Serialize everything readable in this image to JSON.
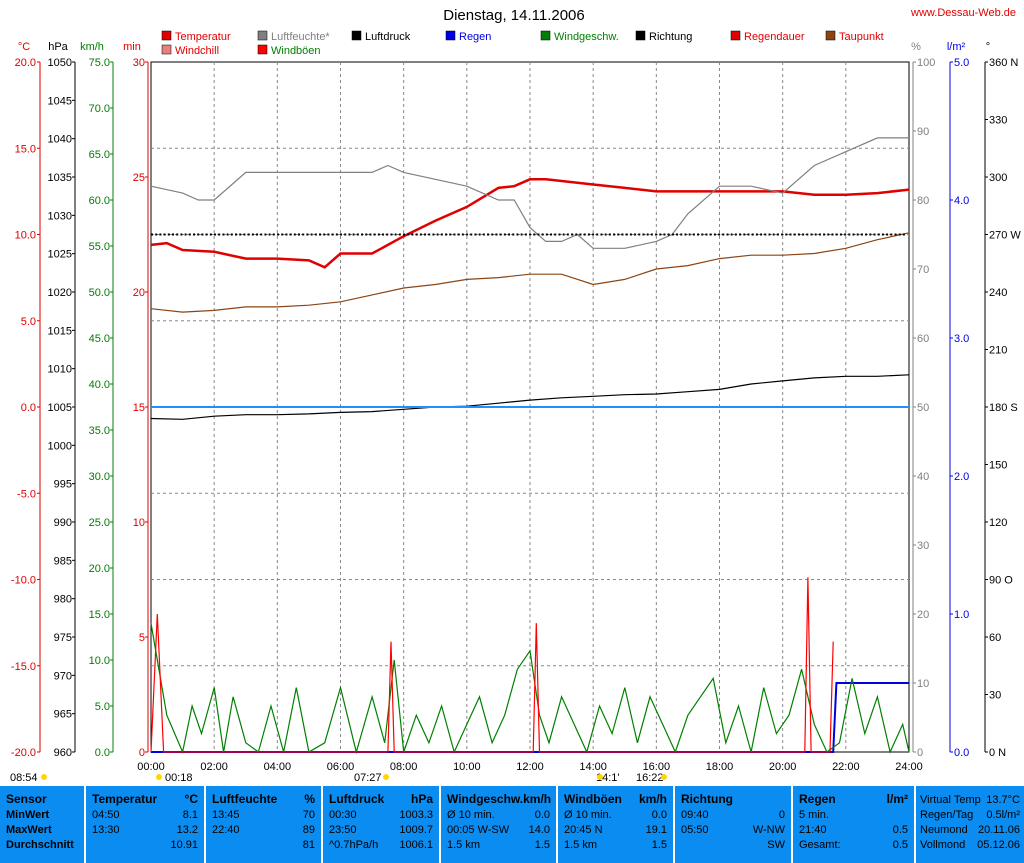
{
  "header": {
    "title": "Dienstag, 14.11.2006",
    "website": "www.Dessau-Web.de"
  },
  "legend": [
    {
      "label": "Temperatur",
      "color": "#e00000",
      "text_color": "#e00000"
    },
    {
      "label": "Windchill",
      "color": "#e88080",
      "text_color": "#e00000"
    },
    {
      "label": "Luftfeuchte*",
      "color": "#808080",
      "text_color": "#808080"
    },
    {
      "label": "Windböen",
      "color": "#ff0000",
      "text_color": "#008000"
    },
    {
      "label": "Luftdruck",
      "color": "#000000",
      "text_color": "#000000"
    },
    {
      "label": "Regen",
      "color": "#0000e0",
      "text_color": "#0000e0"
    },
    {
      "label": "Windgeschw.",
      "color": "#008000",
      "text_color": "#008000"
    },
    {
      "label": "Richtung",
      "color": "#000000",
      "text_color": "#000000"
    },
    {
      "label": "Regendauer",
      "color": "#e00000",
      "text_color": "#e00000"
    },
    {
      "label": "Taupunkt",
      "color": "#8b4513",
      "text_color": "#e00000"
    }
  ],
  "axes": {
    "temp": {
      "unit": "°C",
      "color": "#e00000",
      "ticks": [
        "20.0",
        "15.0",
        "10.0",
        "5.0",
        "0.0",
        "-5.0",
        "-10.0",
        "-15.0",
        "-20.0"
      ]
    },
    "pressure": {
      "unit": "hPa",
      "color": "#000000",
      "ticks": [
        "1050",
        "1045",
        "1040",
        "1035",
        "1030",
        "1025",
        "1020",
        "1015",
        "1010",
        "1005",
        "1000",
        "995",
        "990",
        "985",
        "980",
        "975",
        "970",
        "965",
        "960"
      ]
    },
    "wind": {
      "unit": "km/h",
      "color": "#008000",
      "ticks": [
        "75.0",
        "70.0",
        "65.0",
        "60.0",
        "55.0",
        "50.0",
        "45.0",
        "40.0",
        "35.0",
        "30.0",
        "25.0",
        "20.0",
        "15.0",
        "10.0",
        "5.0",
        "0.0"
      ]
    },
    "minutes": {
      "unit": "min",
      "color": "#e00000",
      "ticks": [
        "30",
        "25",
        "20",
        "15",
        "10",
        "5",
        "0"
      ]
    },
    "humidity": {
      "unit": "%",
      "color": "#808080",
      "ticks": [
        "100",
        "90",
        "80",
        "70",
        "60",
        "50",
        "40",
        "30",
        "20",
        "10",
        "0"
      ]
    },
    "rain": {
      "unit": "l/m²",
      "color": "#0000e0",
      "ticks": [
        "5.0",
        "4.0",
        "3.0",
        "2.0",
        "1.0",
        "0.0"
      ]
    },
    "direction": {
      "unit": "°",
      "color": "#000000",
      "ticks": [
        "360 N",
        "330",
        "300",
        "270 W",
        "240",
        "210",
        "180 S",
        "150",
        "120",
        "90 O",
        "60",
        "30",
        "0 N"
      ]
    },
    "time": {
      "ticks": [
        "00:00",
        "02:00",
        "04:00",
        "06:00",
        "08:00",
        "10:00",
        "12:00",
        "14:00",
        "16:00",
        "18:00",
        "20:00",
        "22:00",
        "24:00"
      ]
    }
  },
  "sun_events": [
    "08:54",
    "00:18",
    "07:27",
    "14:1'",
    "16:22"
  ],
  "chart_data": {
    "type": "line",
    "x_unit": "hours",
    "xlim": [
      0,
      24
    ],
    "series": [
      {
        "name": "Temperatur",
        "axis": "temp",
        "color": "#e00000",
        "x": [
          0,
          0.5,
          1,
          2,
          3,
          4,
          5,
          5.5,
          6,
          7,
          7.5,
          8,
          9,
          10,
          11,
          11.5,
          12,
          12.5,
          13,
          14,
          15,
          16,
          17,
          18,
          19,
          20,
          21,
          22,
          23,
          24
        ],
        "y": [
          9.4,
          9.5,
          9.1,
          9.0,
          8.6,
          8.6,
          8.5,
          8.1,
          8.9,
          8.9,
          9.4,
          9.9,
          10.8,
          11.6,
          12.7,
          12.8,
          13.2,
          13.2,
          13.1,
          12.9,
          12.7,
          12.5,
          12.5,
          12.5,
          12.5,
          12.5,
          12.3,
          12.3,
          12.4,
          12.6
        ]
      },
      {
        "name": "Taupunkt",
        "axis": "temp",
        "color": "#8b4513",
        "x": [
          0,
          1,
          2,
          3,
          4,
          5,
          6,
          7,
          8,
          9,
          10,
          11,
          12,
          13,
          14,
          15,
          16,
          17,
          18,
          19,
          20,
          21,
          22,
          23,
          24
        ],
        "y": [
          5.7,
          5.5,
          5.6,
          5.8,
          5.8,
          5.9,
          6.1,
          6.5,
          6.9,
          7.1,
          7.4,
          7.5,
          7.7,
          7.7,
          7.1,
          7.4,
          8.0,
          8.2,
          8.6,
          8.8,
          8.8,
          8.9,
          9.2,
          9.7,
          10.1
        ]
      },
      {
        "name": "Luftfeuchte*",
        "axis": "humidity",
        "color": "#808080",
        "x": [
          0,
          1,
          1.5,
          2,
          3,
          4,
          5,
          6,
          7,
          7.5,
          8,
          9,
          10,
          11,
          11.5,
          12,
          12.5,
          13,
          13.5,
          14,
          15,
          16,
          16.5,
          17,
          18,
          19,
          20,
          21,
          22,
          23,
          24
        ],
        "y": [
          82,
          81,
          80,
          80,
          84,
          84,
          84,
          84,
          84,
          85,
          84,
          83,
          82,
          80,
          80,
          76,
          74,
          74,
          75,
          73,
          73,
          74,
          75,
          78,
          82,
          82,
          81,
          85,
          87,
          89,
          89
        ]
      },
      {
        "name": "Luftdruck",
        "axis": "pressure",
        "color": "#000000",
        "x": [
          0,
          1,
          2,
          3,
          4,
          5,
          6,
          7,
          8,
          9,
          10,
          11,
          12,
          13,
          14,
          15,
          16,
          17,
          18,
          19,
          20,
          21,
          22,
          23,
          24
        ],
        "y": [
          1003.5,
          1003.4,
          1003.8,
          1004.0,
          1004.0,
          1004.1,
          1004.3,
          1004.4,
          1004.7,
          1005.0,
          1005.1,
          1005.5,
          1005.9,
          1006.2,
          1006.4,
          1006.6,
          1006.7,
          1007.0,
          1007.3,
          1008.0,
          1008.4,
          1008.8,
          1009.0,
          1009.0,
          1009.2
        ]
      },
      {
        "name": "Regen",
        "axis": "rain",
        "color": "#0000e0",
        "x": [
          0,
          21.6,
          21.7,
          24
        ],
        "y": [
          0,
          0,
          0.5,
          0.5
        ]
      },
      {
        "name": "Windgeschw.",
        "axis": "wind",
        "color": "#008000",
        "x": [
          0,
          0.5,
          1,
          1.3,
          1.6,
          2,
          2.3,
          2.6,
          3,
          3.4,
          3.8,
          4.2,
          4.6,
          5,
          5.5,
          6,
          6.5,
          7,
          7.4,
          7.7,
          8,
          8.4,
          8.8,
          9.2,
          9.6,
          10,
          10.4,
          10.8,
          11.2,
          11.6,
          12,
          12.3,
          12.6,
          13,
          13.4,
          13.8,
          14.2,
          14.6,
          15,
          15.4,
          15.8,
          16.2,
          16.6,
          17,
          17.4,
          17.8,
          18.2,
          18.6,
          19,
          19.4,
          19.8,
          20.2,
          20.6,
          21,
          21.4,
          21.8,
          22.2,
          22.6,
          23,
          23.4,
          23.8,
          24
        ],
        "y": [
          14,
          4,
          0,
          5,
          2,
          7,
          0,
          6,
          1,
          0,
          5,
          0,
          7,
          0,
          1,
          7,
          0,
          6,
          1,
          10,
          0,
          4,
          1,
          5,
          0,
          3,
          6,
          1,
          4,
          9,
          11,
          4,
          1,
          6,
          3,
          0,
          5,
          2,
          7,
          1,
          6,
          3,
          0,
          4,
          6,
          8,
          1,
          5,
          0,
          7,
          2,
          4,
          9,
          3,
          0,
          1,
          8,
          2,
          6,
          0,
          3,
          0
        ]
      },
      {
        "name": "Windböen",
        "axis": "wind",
        "color": "#ff0000",
        "x": [
          0,
          0.2,
          0.4,
          7.5,
          7.6,
          7.7,
          12.1,
          12.2,
          12.3,
          20.7,
          20.8,
          20.9,
          21.5,
          21.6
        ],
        "y": [
          0,
          15,
          0,
          0,
          12,
          0,
          0,
          14,
          0,
          0,
          19,
          0,
          0,
          12
        ]
      }
    ],
    "grid": true
  },
  "table": {
    "columns": [
      {
        "header": "Sensor",
        "unit": "",
        "rows": [
          [
            "MinWert",
            ""
          ],
          [
            "MaxWert",
            ""
          ],
          [
            "Durchschnitt",
            ""
          ]
        ]
      },
      {
        "header": "Temperatur",
        "unit": "°C",
        "rows": [
          [
            "04:50",
            "8.1"
          ],
          [
            "13:30",
            "13.2"
          ],
          [
            "",
            "10.91"
          ]
        ]
      },
      {
        "header": "Luftfeuchte",
        "unit": "%",
        "rows": [
          [
            "13:45",
            "70"
          ],
          [
            "22:40",
            "89"
          ],
          [
            "",
            "81"
          ]
        ]
      },
      {
        "header": "Luftdruck",
        "unit": "hPa",
        "rows": [
          [
            "00:30",
            "1003.3"
          ],
          [
            "23:50",
            "1009.7"
          ],
          [
            "^0.7hPa/h",
            "1006.1"
          ]
        ]
      },
      {
        "header": "Windgeschw.",
        "unit": "km/h",
        "rows": [
          [
            "Ø 10 min.",
            "0.0"
          ],
          [
            "00:05  W-SW",
            "14.0"
          ],
          [
            "1.5 km",
            "1.5"
          ]
        ]
      },
      {
        "header": "Windböen",
        "unit": "km/h",
        "rows": [
          [
            "Ø 10 min.",
            "0.0"
          ],
          [
            "20:45  N",
            "19.1"
          ],
          [
            "1.5 km",
            "1.5"
          ]
        ]
      },
      {
        "header": "Richtung",
        "unit": "",
        "rows": [
          [
            "09:40",
            "0"
          ],
          [
            "05:50",
            "W-NW"
          ],
          [
            "",
            "SW"
          ]
        ]
      },
      {
        "header": "Regen",
        "unit": "l/m²",
        "rows": [
          [
            "5 min.",
            ""
          ],
          [
            "21:40",
            "0.5"
          ],
          [
            "Gesamt:",
            "0.5"
          ]
        ]
      }
    ],
    "extra": [
      [
        "Virtual Temp",
        "13.7°C"
      ],
      [
        "Regen/Tag",
        "0.5l/m²"
      ],
      [
        "Neumond",
        "20.11.06"
      ],
      [
        "Vollmond",
        "05.12.06"
      ]
    ]
  }
}
